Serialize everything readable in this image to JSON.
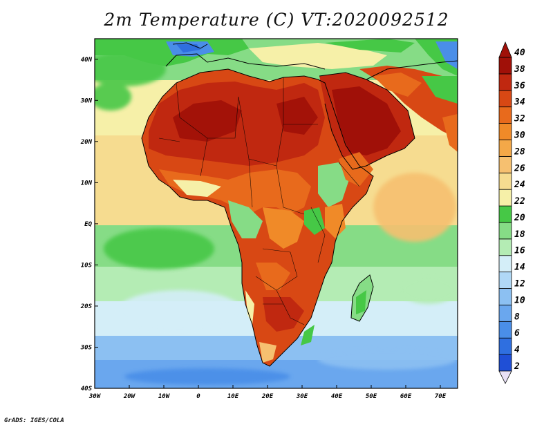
{
  "title": "2m Temperature (C) VT:2020092512",
  "credit": "GrADS: IGES/COLA",
  "map": {
    "lon_range": [
      -30,
      75
    ],
    "lat_range": [
      -40,
      45
    ],
    "lon_ticks": [
      "30W",
      "20W",
      "10W",
      "0",
      "10E",
      "20E",
      "30E",
      "40E",
      "50E",
      "60E",
      "70E"
    ],
    "lat_ticks": [
      "40S",
      "30S",
      "20S",
      "10S",
      "EQ",
      "10N",
      "20N",
      "30N",
      "40N"
    ],
    "variable": "2m air temperature",
    "units": "C"
  },
  "colorbar": {
    "levels": [
      "2",
      "4",
      "6",
      "8",
      "10",
      "12",
      "14",
      "16",
      "18",
      "20",
      "22",
      "24",
      "26",
      "28",
      "30",
      "32",
      "34",
      "36",
      "38",
      "40"
    ],
    "colors": [
      "#1a2a9c",
      "#1f4fd6",
      "#2f6fe0",
      "#4a8ee8",
      "#6aa7ee",
      "#8cc0f2",
      "#b0d8f6",
      "#d4eef8",
      "#b4ecb4",
      "#86dc86",
      "#46c846",
      "#f6f0a8",
      "#f6dc90",
      "#f6c070",
      "#f4a848",
      "#f08a28",
      "#e86a1c",
      "#d84814",
      "#c02810",
      "#a01008"
    ]
  }
}
